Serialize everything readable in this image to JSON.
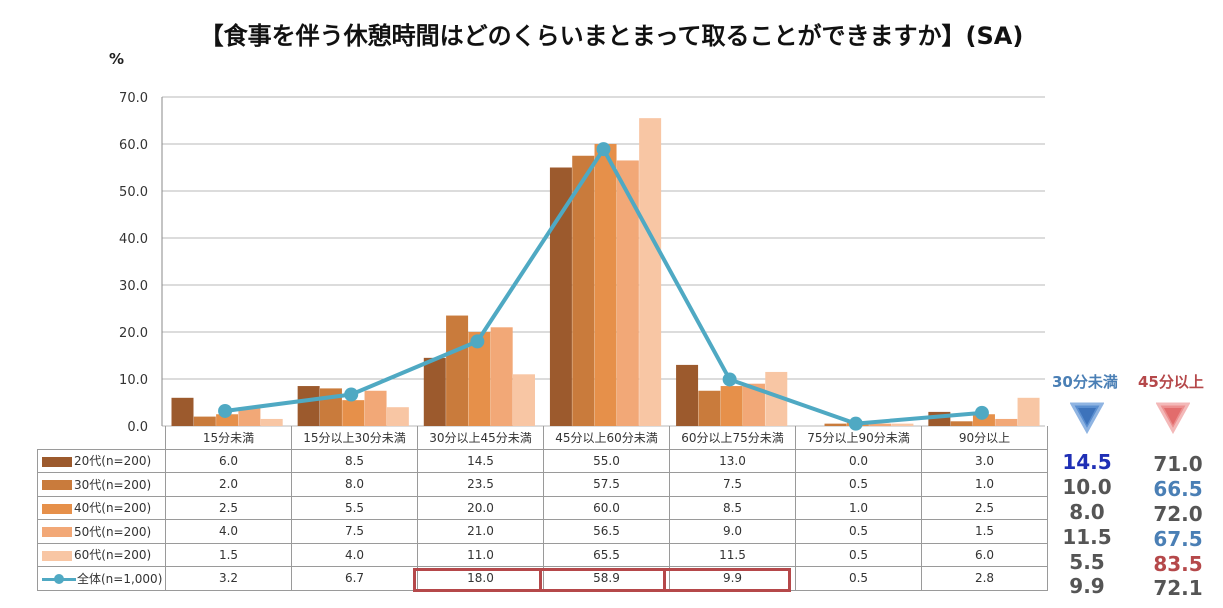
{
  "title": "【食事を伴う休憩時間はどのくらいまとまって取ることができますか】(SA)",
  "unit": "%",
  "chart_data": {
    "type": "bar",
    "categories": [
      "15分未満",
      "15分以上30分未満",
      "30分以上45分未満",
      "45分以上60分未満",
      "60分以上75分未満",
      "75分以上90分未満",
      "90分以上"
    ],
    "ylim": [
      0,
      70
    ],
    "yticks": [
      "0.0",
      "10.0",
      "20.0",
      "30.0",
      "40.0",
      "50.0",
      "60.0",
      "70.0"
    ],
    "grid": true,
    "series": [
      {
        "name": "20代(n=200)",
        "type": "bar",
        "color": "#9c5a2d",
        "values": [
          6.0,
          8.5,
          14.5,
          55.0,
          13.0,
          0.0,
          3.0
        ]
      },
      {
        "name": "30代(n=200)",
        "type": "bar",
        "color": "#c97b3c",
        "values": [
          2.0,
          8.0,
          23.5,
          57.5,
          7.5,
          0.5,
          1.0
        ]
      },
      {
        "name": "40代(n=200)",
        "type": "bar",
        "color": "#e6904a",
        "values": [
          2.5,
          5.5,
          20.0,
          60.0,
          8.5,
          1.0,
          2.5
        ]
      },
      {
        "name": "50代(n=200)",
        "type": "bar",
        "color": "#f2a877",
        "values": [
          4.0,
          7.5,
          21.0,
          56.5,
          9.0,
          0.5,
          1.5
        ]
      },
      {
        "name": "60代(n=200)",
        "type": "bar",
        "color": "#f8c6a4",
        "values": [
          1.5,
          4.0,
          11.0,
          65.5,
          11.5,
          0.5,
          6.0
        ]
      },
      {
        "name": "全体(n=1,000)",
        "type": "line",
        "color": "#4fa9c3",
        "values": [
          3.2,
          6.7,
          18.0,
          58.9,
          9.9,
          0.5,
          2.8
        ]
      }
    ],
    "table": [
      [
        "6.0",
        "8.5",
        "14.5",
        "55.0",
        "13.0",
        "0.0",
        "3.0"
      ],
      [
        "2.0",
        "8.0",
        "23.5",
        "57.5",
        "7.5",
        "0.5",
        "1.0"
      ],
      [
        "2.5",
        "5.5",
        "20.0",
        "60.0",
        "8.5",
        "1.0",
        "2.5"
      ],
      [
        "4.0",
        "7.5",
        "21.0",
        "56.5",
        "9.0",
        "0.5",
        "1.5"
      ],
      [
        "1.5",
        "4.0",
        "11.0",
        "65.5",
        "11.5",
        "0.5",
        "6.0"
      ],
      [
        "3.2",
        "6.7",
        "18.0",
        "58.9",
        "9.9",
        "0.5",
        "2.8"
      ]
    ]
  },
  "summary": {
    "under30_label": "30分未満",
    "over45_label": "45分以上",
    "under30_color": "#4a7fb5",
    "over45_color": "#b5484a",
    "under30": [
      "14.5",
      "10.0",
      "8.0",
      "11.5",
      "5.5",
      "9.9"
    ],
    "over45": [
      "71.0",
      "66.5",
      "72.0",
      "67.5",
      "83.5",
      "72.1"
    ],
    "under30_colors": [
      "#1f2fb5",
      "#555555",
      "#555555",
      "#555555",
      "#555555",
      "#555555"
    ],
    "over45_colors": [
      "#555555",
      "#4a7fb5",
      "#555555",
      "#4a7fb5",
      "#b5484a",
      "#555555"
    ]
  }
}
